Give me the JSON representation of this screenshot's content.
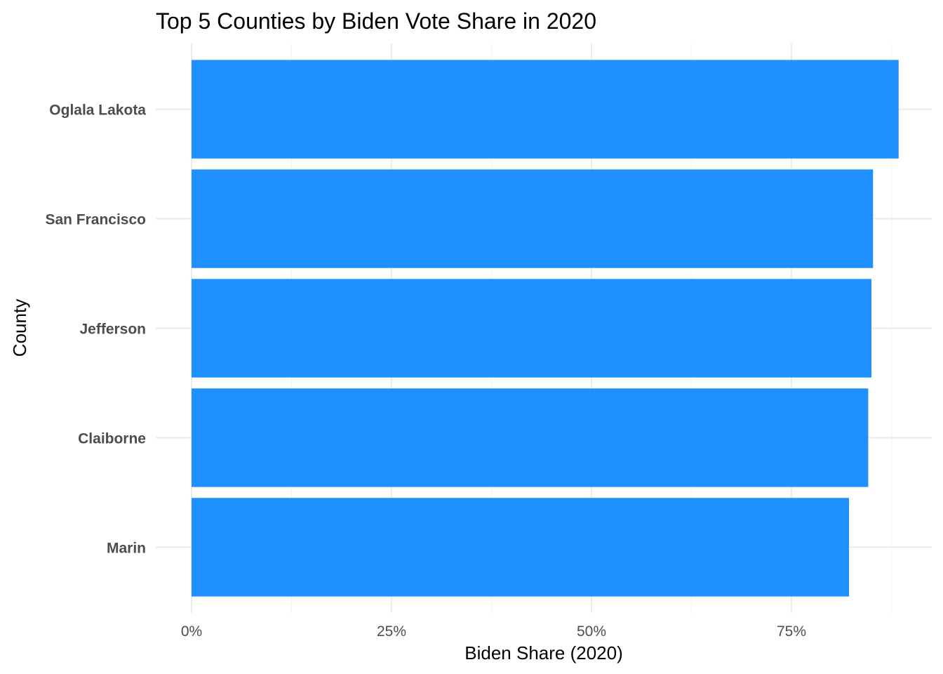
{
  "chart_data": {
    "type": "bar",
    "orientation": "horizontal",
    "title": "Top 5 Counties by Biden Vote Share in 2020",
    "xlabel": "Biden Share (2020)",
    "ylabel": "County",
    "categories": [
      "Oglala Lakota",
      "San Francisco",
      "Jefferson",
      "Claiborne",
      "Marin"
    ],
    "values": [
      0.884,
      0.852,
      0.85,
      0.846,
      0.822
    ],
    "xlim": [
      0,
      0.927
    ],
    "xticks": [
      0,
      0.25,
      0.5,
      0.75
    ],
    "xtick_labels": [
      "0%",
      "25%",
      "50%",
      "75%"
    ],
    "grid": true,
    "bar_color": "#1E90FF"
  }
}
